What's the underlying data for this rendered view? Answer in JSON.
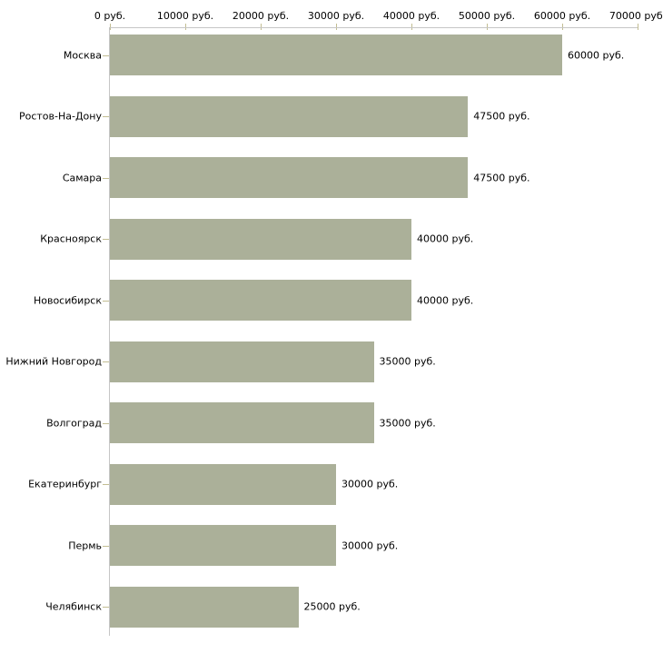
{
  "chart_data": {
    "type": "bar",
    "orientation": "horizontal",
    "title": "",
    "unit": "руб.",
    "categories": [
      "Москва",
      "Ростов-На-Дону",
      "Самара",
      "Красноярск",
      "Новосибирск",
      "Нижний Новгород",
      "Волгоград",
      "Екатеринбург",
      "Пермь",
      "Челябинск"
    ],
    "values": [
      60000,
      47500,
      47500,
      40000,
      40000,
      35000,
      35000,
      30000,
      30000,
      25000
    ],
    "value_labels": [
      "60000 руб.",
      "47500 руб.",
      "47500 руб.",
      "40000 руб.",
      "40000 руб.",
      "35000 руб.",
      "35000 руб.",
      "30000 руб.",
      "30000 руб.",
      "25000 руб."
    ],
    "x_axis": {
      "position": "top",
      "min": 0,
      "max": 70000,
      "tick_step": 10000,
      "tick_labels": [
        "0 руб.",
        "10000 руб.",
        "20000 руб.",
        "30000 руб.",
        "40000 руб.",
        "50000 руб.",
        "60000 руб.",
        "70000 руб."
      ]
    },
    "grid": false,
    "legend": false,
    "colors": {
      "bar": "#abb099",
      "axis_line": "#c6c6c6",
      "tick_mark": "#c2bd92",
      "text": "#000000",
      "background": "#ffffff"
    }
  }
}
